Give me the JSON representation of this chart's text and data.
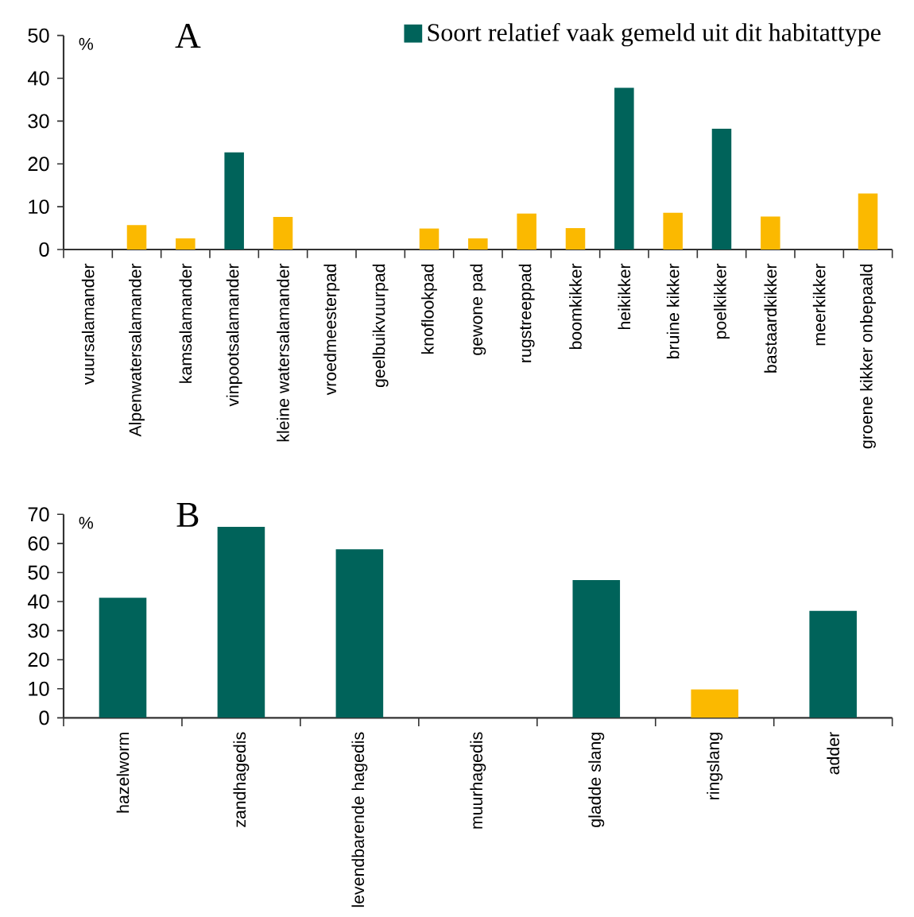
{
  "chart_data": [
    {
      "type": "bar",
      "title": "A",
      "ylabel": "%",
      "categories": [
        "vuursalamander",
        "Alpenwatersalamander",
        "kamsalamander",
        "vinpootsalamander",
        "kleine watersalamander",
        "vroedmeesterpad",
        "geelbuikvuurpad",
        "knoflookpad",
        "gewone pad",
        "rugstreeppad",
        "boomkikker",
        "heikikker",
        "bruine kikker",
        "poelkikker",
        "bastaardkikker",
        "meerkikker",
        "groene kikker onbepaald"
      ],
      "series": [
        {
          "name": "Soort relatief vaak gemeld uit dit habitattype",
          "color": "#00635a",
          "values": [
            null,
            null,
            null,
            22.7,
            null,
            null,
            null,
            null,
            null,
            null,
            null,
            37.8,
            null,
            28.2,
            null,
            null,
            null
          ]
        },
        {
          "color": "#fbb900",
          "values": [
            0,
            5.7,
            2.6,
            null,
            7.6,
            0,
            0,
            4.9,
            2.6,
            8.4,
            5.0,
            null,
            8.6,
            null,
            7.7,
            0,
            13.1
          ]
        }
      ],
      "ylim": [
        0,
        50
      ],
      "yticks": [
        0,
        10,
        20,
        30,
        40,
        50
      ],
      "legend": "top right"
    },
    {
      "type": "bar",
      "title": "B",
      "ylabel": "%",
      "categories": [
        "hazelworm",
        "zandhagedis",
        "levendbarende hagedis",
        "muurhagedis",
        "gladde slang",
        "ringslang",
        "adder"
      ],
      "series": [
        {
          "color": "#00635a",
          "values": [
            41.3,
            65.7,
            58.0,
            0,
            47.4,
            null,
            36.8
          ]
        },
        {
          "color": "#fbb900",
          "values": [
            null,
            null,
            null,
            null,
            null,
            9.8,
            null
          ]
        }
      ],
      "ylim": [
        0,
        70
      ],
      "yticks": [
        0,
        10,
        20,
        30,
        40,
        50,
        60,
        70
      ]
    }
  ]
}
